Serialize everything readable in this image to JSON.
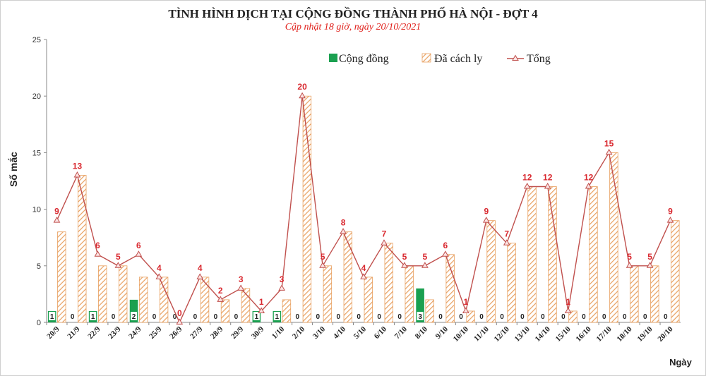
{
  "chart_data": {
    "type": "bar",
    "title": "TÌNH HÌNH DỊCH TẠI CỘNG ĐỒNG THÀNH PHỐ HÀ NỘI - ĐỢT 4",
    "subtitle": "Cập nhật 18 giờ, ngày 20/10/2021",
    "xlabel": "Ngày",
    "ylabel": "Số mắc",
    "ylim": [
      0,
      25
    ],
    "yticks": [
      0,
      5,
      10,
      15,
      20,
      25
    ],
    "categories": [
      "20/9",
      "21/9",
      "22/9",
      "23/9",
      "24/9",
      "25/9",
      "26/9",
      "27/9",
      "28/9",
      "29/9",
      "30/9",
      "1/10",
      "2/10",
      "3/10",
      "4/10",
      "5/10",
      "6/10",
      "7/10",
      "8/10",
      "9/10",
      "10/10",
      "11/10",
      "12/10",
      "13/10",
      "14/10",
      "15/10",
      "16/10",
      "17/10",
      "18/10",
      "19/10",
      "20/10"
    ],
    "series": [
      {
        "name": "Cộng đồng",
        "type": "bar",
        "color": "#1aa050",
        "values": [
          1,
          0,
          1,
          0,
          2,
          0,
          0,
          0,
          0,
          0,
          1,
          1,
          0,
          0,
          0,
          0,
          0,
          0,
          3,
          0,
          0,
          0,
          0,
          0,
          0,
          0,
          0,
          0,
          0,
          0,
          0
        ]
      },
      {
        "name": "Đã cách ly",
        "type": "bar",
        "color": "#e8a060",
        "values": [
          8,
          13,
          5,
          5,
          4,
          4,
          0,
          4,
          2,
          3,
          0,
          2,
          20,
          5,
          8,
          4,
          7,
          5,
          2,
          6,
          1,
          9,
          7,
          12,
          12,
          1,
          12,
          15,
          5,
          5,
          9
        ]
      },
      {
        "name": "Tổng",
        "type": "line",
        "color": "#c0504d",
        "values": [
          9,
          13,
          6,
          5,
          6,
          4,
          0,
          4,
          2,
          3,
          1,
          3,
          20,
          5,
          8,
          4,
          7,
          5,
          5,
          6,
          1,
          9,
          7,
          12,
          12,
          1,
          12,
          15,
          5,
          5,
          9
        ]
      }
    ],
    "legend_position": "top-center",
    "grid": false
  }
}
